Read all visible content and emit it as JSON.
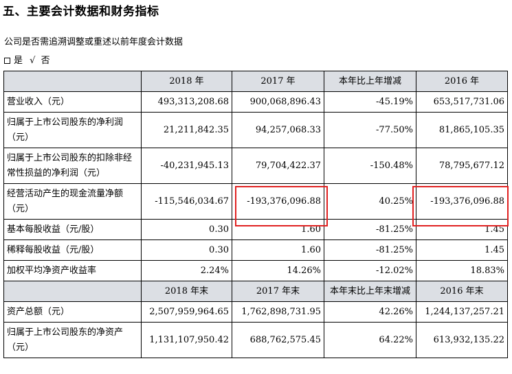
{
  "title": "五、主要会计数据和财务指标",
  "question": "公司是否需追溯调整或重述以前年度会计数据",
  "answer": {
    "yes": "是",
    "mark": "√",
    "no": "否"
  },
  "header_years": [
    "2018 年",
    "2017 年",
    "本年比上年增减",
    "2016 年"
  ],
  "header_yearend": [
    "2018 年末",
    "2017 年末",
    "本年末比上年末增减",
    "2016 年末"
  ],
  "rows": [
    {
      "label": "营业收入（元）",
      "v2018": "493,313,208.68",
      "v2017": "900,068,896.43",
      "change": "-45.19%",
      "v2016": "653,517,731.06"
    },
    {
      "label": "归属于上市公司股东的净利润（元）",
      "v2018": "21,211,842.35",
      "v2017": "94,257,068.33",
      "change": "-77.50%",
      "v2016": "81,865,105.35"
    },
    {
      "label": "归属于上市公司股东的扣除非经常性损益的净利润（元）",
      "v2018": "-40,231,945.13",
      "v2017": "79,704,422.37",
      "change": "-150.48%",
      "v2016": "78,795,677.12"
    },
    {
      "label": "经营活动产生的现金流量净额（元）",
      "v2018": "-115,546,034.67",
      "v2017": "-193,376,096.88",
      "change": "40.25%",
      "v2016": "-193,376,096.88"
    },
    {
      "label": "基本每股收益（元/股）",
      "v2018": "0.30",
      "v2017": "1.60",
      "change": "-81.25%",
      "v2016": "1.45"
    },
    {
      "label": "稀释每股收益（元/股）",
      "v2018": "0.30",
      "v2017": "1.60",
      "change": "-81.25%",
      "v2016": "1.45"
    },
    {
      "label": "加权平均净资产收益率",
      "v2018": "2.24%",
      "v2017": "14.26%",
      "change": "-12.02%",
      "v2016": "18.83%"
    }
  ],
  "rows_yearend": [
    {
      "label": "资产总额（元）",
      "v2018": "2,507,959,964.65",
      "v2017": "1,762,898,731.95",
      "change": "42.26%",
      "v2016": "1,244,137,257.21"
    },
    {
      "label": "归属于上市公司股东的净资产（元）",
      "v2018": "1,131,107,950.42",
      "v2017": "688,762,575.45",
      "change": "64.22%",
      "v2016": "613,932,135.22"
    }
  ],
  "highlight_color": "#e02020"
}
